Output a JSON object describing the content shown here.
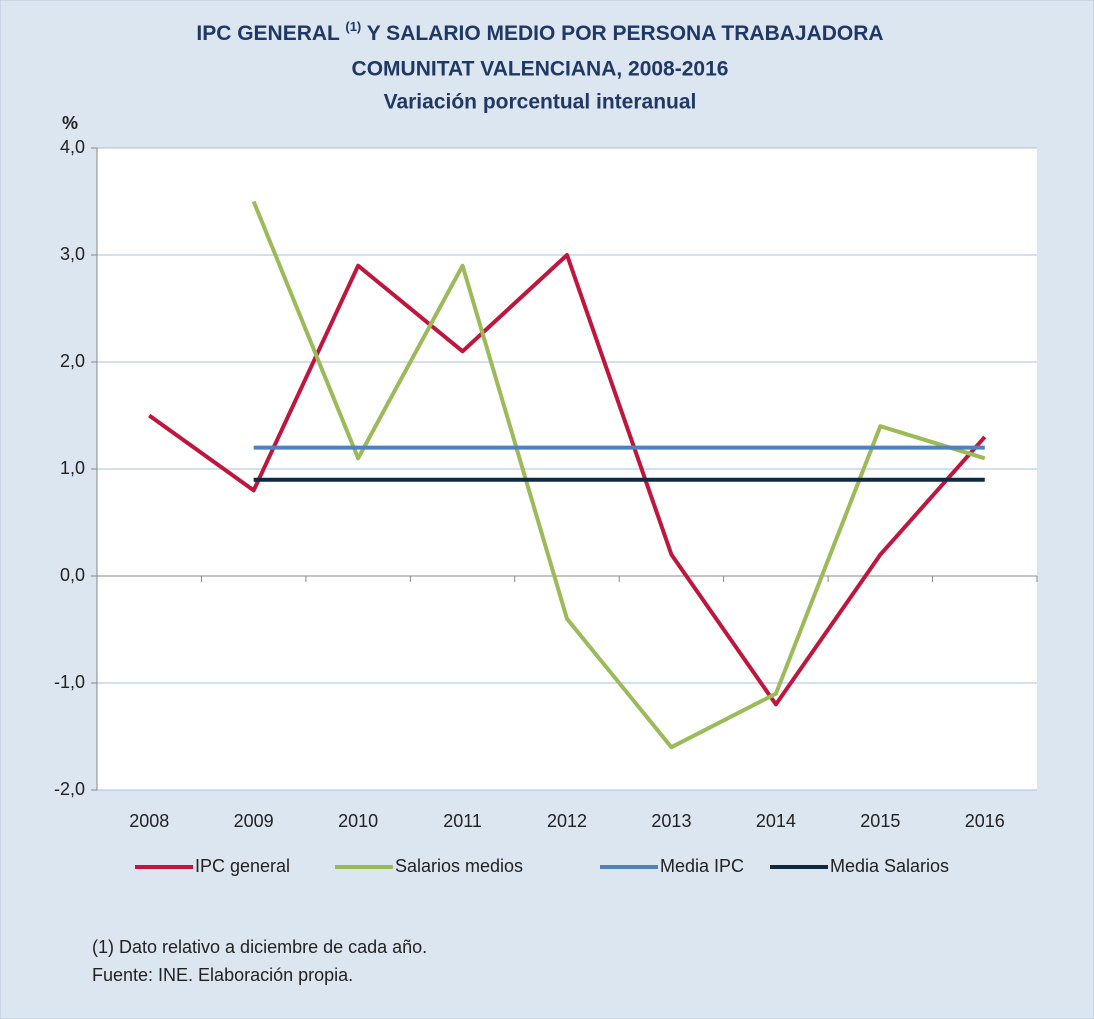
{
  "chart_data": {
    "type": "line",
    "title": [
      "IPC GENERAL",
      "(1)",
      "Y SALARIO MEDIO POR PERSONA TRABAJADORA",
      "COMUNITAT VALENCIANA, 2008-2016"
    ],
    "subtitle": "Variación porcentual interanual",
    "y_label": "%",
    "categories": [
      "2008",
      "2009",
      "2010",
      "2011",
      "2012",
      "2013",
      "2014",
      "2015",
      "2016"
    ],
    "series": [
      {
        "name": "IPC general",
        "color": "#c0163d",
        "values": [
          1.5,
          0.8,
          2.9,
          2.1,
          3.0,
          0.2,
          -1.2,
          0.2,
          1.3
        ]
      },
      {
        "name": "Salarios medios",
        "color": "#9bbb59",
        "values": [
          null,
          3.5,
          1.1,
          2.9,
          -0.4,
          -1.6,
          -1.1,
          1.4,
          1.1
        ]
      },
      {
        "name": "Media IPC",
        "color": "#4f81bd",
        "values": [
          null,
          1.2,
          1.2,
          1.2,
          1.2,
          1.2,
          1.2,
          1.2,
          1.2
        ]
      },
      {
        "name": "Media Salarios",
        "color": "#0f2a40",
        "values": [
          null,
          0.9,
          0.9,
          0.9,
          0.9,
          0.9,
          0.9,
          0.9,
          0.9
        ]
      }
    ],
    "ylim": [
      -2,
      4
    ],
    "yticks": [
      {
        "value": -2,
        "label": "-2,0"
      },
      {
        "value": -1,
        "label": "-1,0"
      },
      {
        "value": 0,
        "label": "0,0"
      },
      {
        "value": 1,
        "label": "1,0"
      },
      {
        "value": 2,
        "label": "2,0"
      },
      {
        "value": 3,
        "label": "3,0"
      },
      {
        "value": 4,
        "label": "4,0"
      }
    ],
    "grid": true,
    "legend": "bottom",
    "footnotes": [
      "(1) Dato relativo a diciembre de cada año.",
      "Fuente: INE. Elaboración propia."
    ]
  }
}
